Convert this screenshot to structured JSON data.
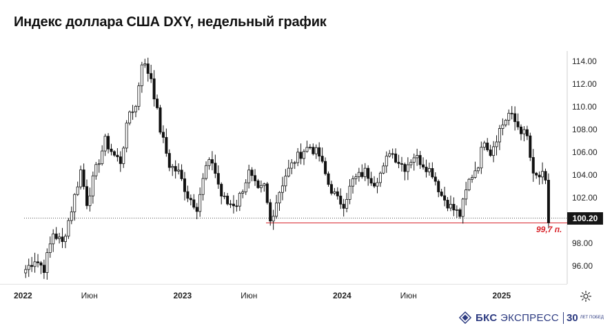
{
  "title": "Индекс доллара США DXY, недельный график",
  "chart_data": {
    "type": "candlestick",
    "title": "Индекс доллара США DXY, недельный график",
    "ylim": [
      94.0,
      116.0
    ],
    "y_ticks": [
      "114.00",
      "112.00",
      "110.00",
      "108.00",
      "106.00",
      "104.00",
      "102.00",
      "98.00",
      "96.00"
    ],
    "x_ticks": [
      {
        "label": "2022",
        "bold": true,
        "t": 0
      },
      {
        "label": "Июн",
        "bold": false,
        "t": 0.413
      },
      {
        "label": "2023",
        "bold": true,
        "t": 1.0
      },
      {
        "label": "Июн",
        "bold": false,
        "t": 1.413
      },
      {
        "label": "2024",
        "bold": true,
        "t": 2.0
      },
      {
        "label": "Июн",
        "bold": false,
        "t": 2.413
      },
      {
        "label": "2025",
        "bold": true,
        "t": 3.0
      }
    ],
    "current_price": "100.20",
    "reference_level": 99.7,
    "reference_label": "99,7 п.",
    "grid": false,
    "anchors": [
      [
        "2022-01-03",
        95.7
      ],
      [
        "2022-01-24",
        96.6
      ],
      [
        "2022-02-14",
        95.8
      ],
      [
        "2022-03-07",
        98.9
      ],
      [
        "2022-03-28",
        98.0
      ],
      [
        "2022-04-18",
        101.0
      ],
      [
        "2022-05-09",
        104.4
      ],
      [
        "2022-05-23",
        101.6
      ],
      [
        "2022-06-13",
        104.5
      ],
      [
        "2022-07-04",
        107.0
      ],
      [
        "2022-07-25",
        105.7
      ],
      [
        "2022-08-08",
        105.2
      ],
      [
        "2022-08-29",
        109.6
      ],
      [
        "2022-09-12",
        110.0
      ],
      [
        "2022-09-26",
        114.0
      ],
      [
        "2022-10-17",
        112.6
      ],
      [
        "2022-11-07",
        108.0
      ],
      [
        "2022-11-28",
        104.9
      ],
      [
        "2022-12-19",
        104.2
      ],
      [
        "2023-01-09",
        102.2
      ],
      [
        "2023-01-30",
        101.2
      ],
      [
        "2023-02-20",
        104.7
      ],
      [
        "2023-03-06",
        105.2
      ],
      [
        "2023-03-27",
        102.2
      ],
      [
        "2023-04-10",
        101.5
      ],
      [
        "2023-05-01",
        101.5
      ],
      [
        "2023-05-29",
        104.2
      ],
      [
        "2023-06-19",
        102.5
      ],
      [
        "2023-07-03",
        103.0
      ],
      [
        "2023-07-17",
        99.9
      ],
      [
        "2023-08-07",
        102.6
      ],
      [
        "2023-08-21",
        104.0
      ],
      [
        "2023-09-11",
        105.3
      ],
      [
        "2023-10-02",
        106.2
      ],
      [
        "2023-10-16",
        106.5
      ],
      [
        "2023-11-06",
        105.7
      ],
      [
        "2023-11-27",
        103.2
      ],
      [
        "2023-12-18",
        101.8
      ],
      [
        "2024-01-01",
        101.5
      ],
      [
        "2024-01-22",
        103.5
      ],
      [
        "2024-02-19",
        104.3
      ],
      [
        "2024-03-11",
        103.4
      ],
      [
        "2024-04-01",
        104.5
      ],
      [
        "2024-04-15",
        106.2
      ],
      [
        "2024-05-06",
        105.2
      ],
      [
        "2024-05-20",
        104.7
      ],
      [
        "2024-06-10",
        105.7
      ],
      [
        "2024-07-01",
        105.0
      ],
      [
        "2024-07-22",
        104.2
      ],
      [
        "2024-08-12",
        102.2
      ],
      [
        "2024-09-02",
        101.2
      ],
      [
        "2024-09-23",
        100.5
      ],
      [
        "2024-10-14",
        103.5
      ],
      [
        "2024-11-04",
        105.0
      ],
      [
        "2024-11-18",
        107.2
      ],
      [
        "2024-12-02",
        106.0
      ],
      [
        "2024-12-23",
        108.0
      ],
      [
        "2025-01-13",
        109.4
      ],
      [
        "2025-02-03",
        108.3
      ],
      [
        "2025-02-24",
        107.3
      ],
      [
        "2025-03-10",
        103.8
      ],
      [
        "2025-03-31",
        103.9
      ],
      [
        "2025-04-07",
        103.2
      ],
      [
        "2025-04-14",
        99.8
      ]
    ]
  },
  "footer": {
    "brand_bold": "БКС",
    "brand_rest": " ЭКСПРЕСС",
    "badge": "30",
    "badge_sub": "ЛЕТ ПОБЕД",
    "icon": "bks-logo-icon"
  },
  "toolbar": {
    "settings_icon": "gear-icon"
  },
  "colors": {
    "candle": "#111111",
    "annotation": "#d8232a",
    "badge_bg": "#161616",
    "brand": "#2c3a80"
  }
}
